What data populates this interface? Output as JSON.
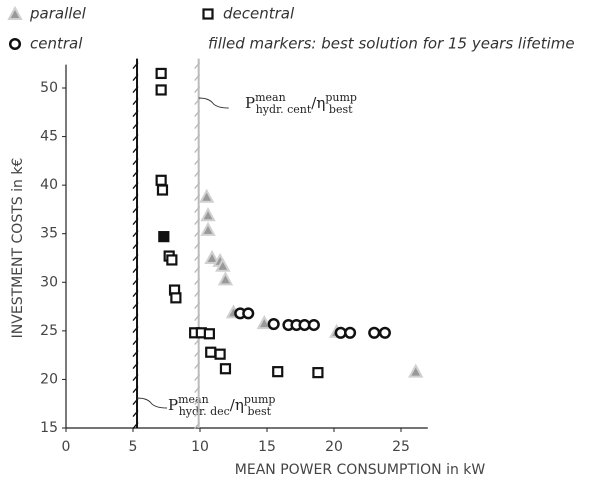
{
  "chart_data": {
    "type": "scatter",
    "xlabel": "MEAN POWER CONSUMPTION in kW",
    "ylabel": "INVESTMENT COSTS in k€",
    "note": "filled markers: best solution for 15 years lifetime",
    "xlim": [
      0,
      27
    ],
    "xticks": [
      0,
      5,
      10,
      15,
      20,
      25
    ],
    "ylim": [
      15,
      52
    ],
    "yticks": [
      15,
      20,
      25,
      30,
      35,
      40,
      45,
      50
    ],
    "series": [
      {
        "name": "parallel",
        "marker": "triangle",
        "color": "#999999",
        "x": [
          10.5,
          10.6,
          10.6,
          10.9,
          11.5,
          11.7,
          11.9,
          12.5,
          14.8,
          20.2,
          26.1
        ],
        "values": [
          38.8,
          36.9,
          35.4,
          32.5,
          32.2,
          31.7,
          30.3,
          26.9,
          25.8,
          24.9,
          20.8
        ]
      },
      {
        "name": "decentral",
        "marker": "square",
        "color": "#111111",
        "x": [
          7.1,
          7.1,
          7.1,
          7.2,
          7.3,
          7.7,
          7.9,
          8.1,
          8.2,
          9.6,
          10.1,
          10.7,
          10.8,
          11.5,
          11.9,
          15.8,
          18.8
        ],
        "values": [
          51.5,
          49.8,
          40.5,
          39.5,
          34.7,
          32.7,
          32.3,
          29.2,
          28.4,
          24.8,
          24.8,
          24.7,
          22.8,
          22.6,
          21.1,
          20.8,
          20.7
        ],
        "filled": [
          false,
          false,
          false,
          false,
          true,
          false,
          false,
          false,
          false,
          false,
          false,
          false,
          false,
          false,
          false,
          false,
          false
        ]
      },
      {
        "name": "central",
        "marker": "circle",
        "color": "#111111",
        "x": [
          13.0,
          13.6,
          15.5,
          16.6,
          17.2,
          17.8,
          18.5,
          20.5,
          21.2,
          23.0,
          23.8
        ],
        "values": [
          26.8,
          26.8,
          25.7,
          25.6,
          25.6,
          25.6,
          25.6,
          24.8,
          24.8,
          24.8,
          24.8
        ]
      }
    ],
    "vlines": [
      {
        "value": 5.3,
        "color": "#111111",
        "base": "P",
        "sup": "mean",
        "sub": "hydr. dec",
        "den": "η",
        "den_sup": "pump",
        "den_sub": "best"
      },
      {
        "value": 9.9,
        "color": "#bbbbbb",
        "base": "P",
        "sup": "mean",
        "sub": "hydr. cent",
        "den": "η",
        "den_sup": "pump",
        "den_sub": "best"
      }
    ]
  }
}
